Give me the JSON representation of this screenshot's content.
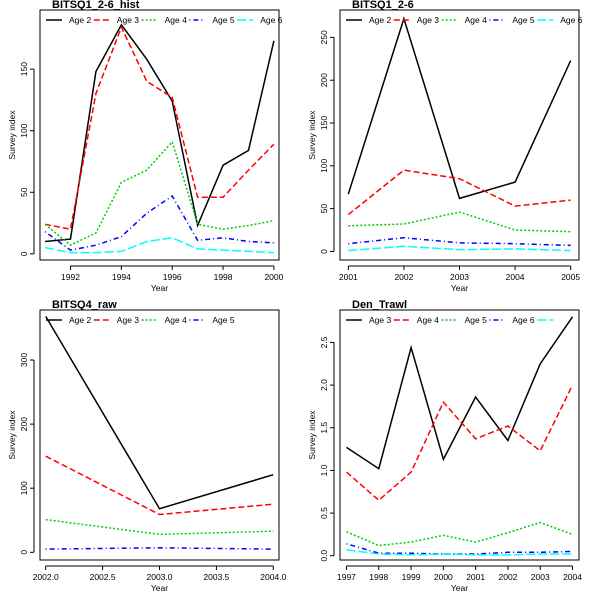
{
  "chart_data": [
    {
      "type": "line",
      "title": "BITSQ1_2-6_hist",
      "xlabel": "Year",
      "ylabel": "Survey index",
      "xlim": [
        1990.8,
        2000.2
      ],
      "ylim": [
        -5,
        198
      ],
      "xticks": [
        1992,
        1994,
        1996,
        1998,
        2000
      ],
      "xtick_labels": [
        "1992",
        "1994",
        "1996",
        "1998",
        "2000"
      ],
      "yticks": [
        0,
        50,
        100,
        150
      ],
      "ytick_labels": [
        "0",
        "50",
        "100",
        "150"
      ],
      "legend_position": "top",
      "x": [
        1991,
        1992,
        1993,
        1994,
        1995,
        1996,
        1997,
        1998,
        1999,
        2000
      ],
      "series": [
        {
          "name": "Age 2",
          "color": "#000000",
          "dash": "solid",
          "values": [
            10,
            12,
            148,
            186,
            158,
            124,
            23,
            72,
            84,
            173
          ]
        },
        {
          "name": "Age 3",
          "color": "#ff0000",
          "dash": "dashed",
          "values": [
            24,
            20,
            130,
            184,
            140,
            127,
            46,
            46,
            68,
            89
          ]
        },
        {
          "name": "Age 4",
          "color": "#00cd00",
          "dash": "dotted",
          "values": [
            24,
            7,
            17,
            58,
            68,
            91,
            24,
            20,
            23,
            27
          ]
        },
        {
          "name": "Age 5",
          "color": "#0000ff",
          "dash": "dotdash",
          "values": [
            18,
            3,
            7,
            14,
            33,
            47,
            11,
            13,
            10,
            9
          ]
        },
        {
          "name": "Age 6",
          "color": "#00ffff",
          "dash": "longdash",
          "values": [
            5,
            1,
            1,
            2,
            10,
            13,
            4,
            3,
            2,
            1
          ]
        }
      ]
    },
    {
      "type": "line",
      "title": "BITSQ1_2-6",
      "xlabel": "Year",
      "ylabel": "Survey index",
      "xlim": [
        2000.85,
        2005.15
      ],
      "ylim": [
        -10,
        282
      ],
      "xticks": [
        2001,
        2002,
        2003,
        2004,
        2005
      ],
      "xtick_labels": [
        "2001",
        "2002",
        "2003",
        "2004",
        "2005"
      ],
      "yticks": [
        0,
        50,
        100,
        150,
        200,
        250
      ],
      "ytick_labels": [
        "0",
        "50",
        "100",
        "150",
        "200",
        "250"
      ],
      "legend_position": "top",
      "x": [
        2001,
        2002,
        2003,
        2004,
        2005
      ],
      "series": [
        {
          "name": "Age 2",
          "color": "#000000",
          "dash": "solid",
          "values": [
            67,
            272,
            62,
            81,
            223
          ]
        },
        {
          "name": "Age 3",
          "color": "#ff0000",
          "dash": "dashed",
          "values": [
            43,
            95,
            85,
            53,
            60
          ]
        },
        {
          "name": "Age 4",
          "color": "#00cd00",
          "dash": "dotted",
          "values": [
            30,
            32,
            46,
            25,
            23
          ]
        },
        {
          "name": "Age 5",
          "color": "#0000ff",
          "dash": "dotdash",
          "values": [
            9,
            16,
            10,
            9,
            7
          ]
        },
        {
          "name": "Age 6",
          "color": "#00ffff",
          "dash": "longdash",
          "values": [
            1,
            6,
            2,
            3,
            1
          ]
        }
      ]
    },
    {
      "type": "line",
      "title": "BITSQ4_raw",
      "xlabel": "Year",
      "ylabel": "Survey index",
      "xlim": [
        2001.95,
        2004.05
      ],
      "ylim": [
        -12,
        378
      ],
      "xticks": [
        2002.0,
        2002.5,
        2003.0,
        2003.5,
        2004.0
      ],
      "xtick_labels": [
        "2002.0",
        "2002.5",
        "2003.0",
        "2003.5",
        "2004.0"
      ],
      "yticks": [
        0,
        100,
        200,
        300
      ],
      "ytick_labels": [
        "0",
        "100",
        "200",
        "300"
      ],
      "legend_position": "top",
      "x": [
        2002,
        2003,
        2004
      ],
      "series": [
        {
          "name": "Age 2",
          "color": "#000000",
          "dash": "solid",
          "values": [
            368,
            68,
            121
          ]
        },
        {
          "name": "Age 3",
          "color": "#ff0000",
          "dash": "dashed",
          "values": [
            150,
            59,
            75
          ]
        },
        {
          "name": "Age 4",
          "color": "#00cd00",
          "dash": "dotted",
          "values": [
            51,
            28,
            33
          ]
        },
        {
          "name": "Age 5",
          "color": "#0000ff",
          "dash": "dotdash",
          "values": [
            5,
            7,
            5
          ]
        }
      ]
    },
    {
      "type": "line",
      "title": "Den_Trawl",
      "xlabel": "Year",
      "ylabel": "Survey index",
      "xlim": [
        1996.8,
        2004.2
      ],
      "ylim": [
        -0.05,
        2.88
      ],
      "xticks": [
        1997,
        1998,
        1999,
        2000,
        2001,
        2002,
        2003,
        2004
      ],
      "xtick_labels": [
        "1997",
        "1998",
        "1999",
        "2000",
        "2001",
        "2002",
        "2003",
        "2004"
      ],
      "yticks": [
        0.0,
        0.5,
        1.0,
        1.5,
        2.0,
        2.5
      ],
      "ytick_labels": [
        "0.0",
        "0.5",
        "1.0",
        "1.5",
        "2.0",
        "2.5"
      ],
      "legend_position": "top",
      "x": [
        1997,
        1998,
        1999,
        2000,
        2001,
        2002,
        2003,
        2004
      ],
      "series": [
        {
          "name": "Age 3",
          "color": "#000000",
          "dash": "solid",
          "values": [
            1.27,
            1.02,
            2.44,
            1.13,
            1.86,
            1.35,
            2.25,
            2.8
          ]
        },
        {
          "name": "Age 4",
          "color": "#ff0000",
          "dash": "dashed",
          "values": [
            0.98,
            0.65,
            0.98,
            1.8,
            1.37,
            1.52,
            1.23,
            2.0
          ]
        },
        {
          "name": "Age 5",
          "color": "#00cd00",
          "dash": "dotted",
          "values": [
            0.28,
            0.12,
            0.16,
            0.24,
            0.16,
            0.27,
            0.39,
            0.25
          ]
        },
        {
          "name": "Age 6",
          "color": "#0000ff",
          "dash": "dotdash",
          "values": [
            0.14,
            0.03,
            0.03,
            0.02,
            0.02,
            0.04,
            0.04,
            0.05
          ]
        },
        {
          "name": "",
          "color": "#00ffff",
          "dash": "longdash",
          "values": [
            0.07,
            0.02,
            0.01,
            0.02,
            0.01,
            0.01,
            0.02,
            0.02
          ]
        }
      ]
    }
  ]
}
